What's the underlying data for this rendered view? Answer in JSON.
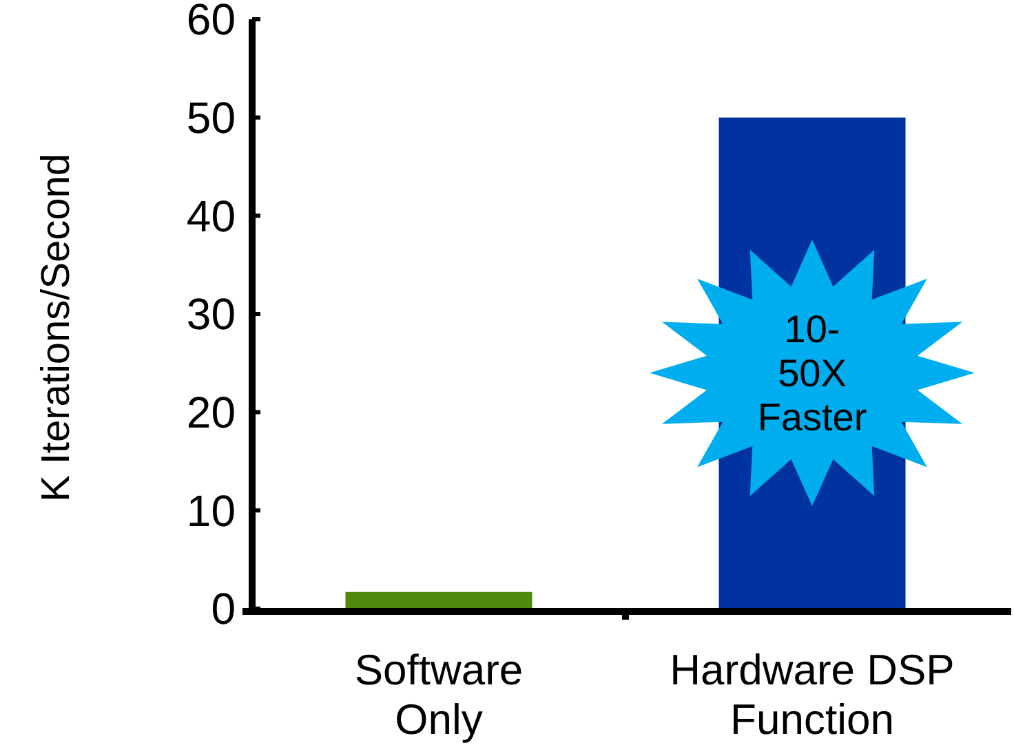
{
  "chart_data": {
    "type": "bar",
    "categories": [
      "Software Only",
      "Hardware DSP Function"
    ],
    "colors": [
      "#4f8a10",
      "#0033a0"
    ],
    "values": [
      1.7,
      50
    ],
    "ylabel": "K Iterations/Second",
    "ylim": [
      0,
      60
    ],
    "yticks": [
      0,
      10,
      20,
      30,
      40,
      50,
      60
    ],
    "grid": false,
    "annotations": [
      "10-\n50X\nFaster"
    ]
  }
}
